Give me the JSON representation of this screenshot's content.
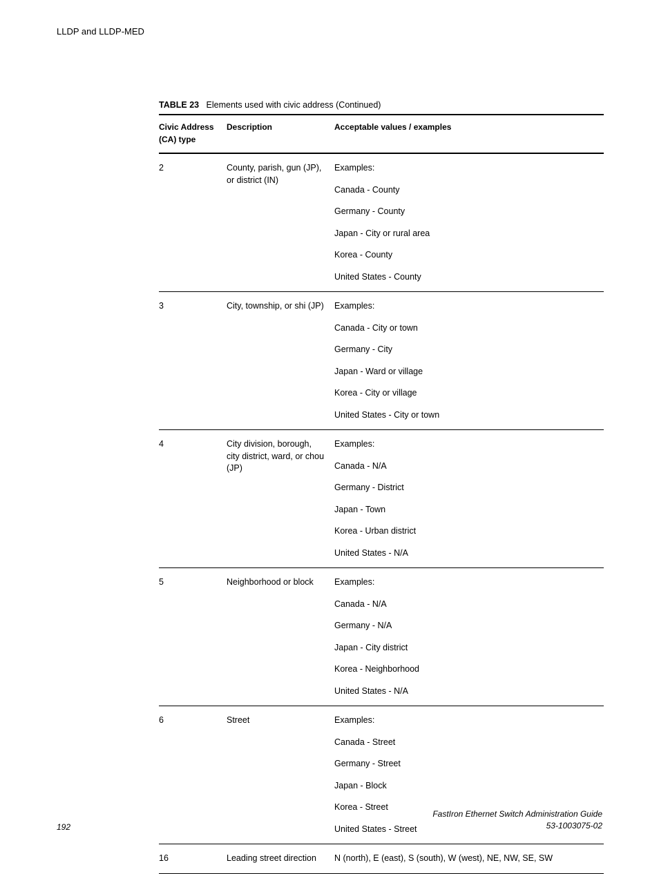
{
  "header": {
    "running_head": "LLDP and LLDP-MED"
  },
  "table": {
    "caption_label": "TABLE 23",
    "caption_text": "Elements used with civic address (Continued)",
    "columns": {
      "ca": "Civic Address (CA) type",
      "desc": "Description",
      "val": "Acceptable values / examples"
    },
    "rows": [
      {
        "ca": "2",
        "desc": "County, parish, gun (JP), or district (IN)",
        "values": [
          "Examples:",
          "Canada - County",
          "Germany - County",
          "Japan - City or rural area",
          "Korea - County",
          "United States - County"
        ]
      },
      {
        "ca": "3",
        "desc": "City, township, or shi (JP)",
        "values": [
          "Examples:",
          "Canada - City or town",
          "Germany - City",
          "Japan - Ward or village",
          "Korea - City or village",
          "United States - City or town"
        ]
      },
      {
        "ca": "4",
        "desc": "City division, borough, city district, ward, or chou (JP)",
        "values": [
          "Examples:",
          "Canada - N/A",
          "Germany - District",
          "Japan - Town",
          "Korea - Urban district",
          "United States - N/A"
        ]
      },
      {
        "ca": "5",
        "desc": "Neighborhood or block",
        "values": [
          "Examples:",
          "Canada - N/A",
          "Germany - N/A",
          "Japan - City district",
          "Korea - Neighborhood",
          "United States - N/A"
        ]
      },
      {
        "ca": "6",
        "desc": "Street",
        "values": [
          "Examples:",
          "Canada - Street",
          "Germany - Street",
          "Japan - Block",
          "Korea - Street",
          "United States - Street"
        ]
      },
      {
        "ca": "16",
        "desc": "Leading street direction",
        "values": [
          "N (north), E (east), S (south), W (west), NE, NW, SE, SW"
        ]
      }
    ]
  },
  "footer": {
    "page_number": "192",
    "doc_title": "FastIron Ethernet Switch Administration Guide",
    "doc_id": "53-1003075-02"
  }
}
